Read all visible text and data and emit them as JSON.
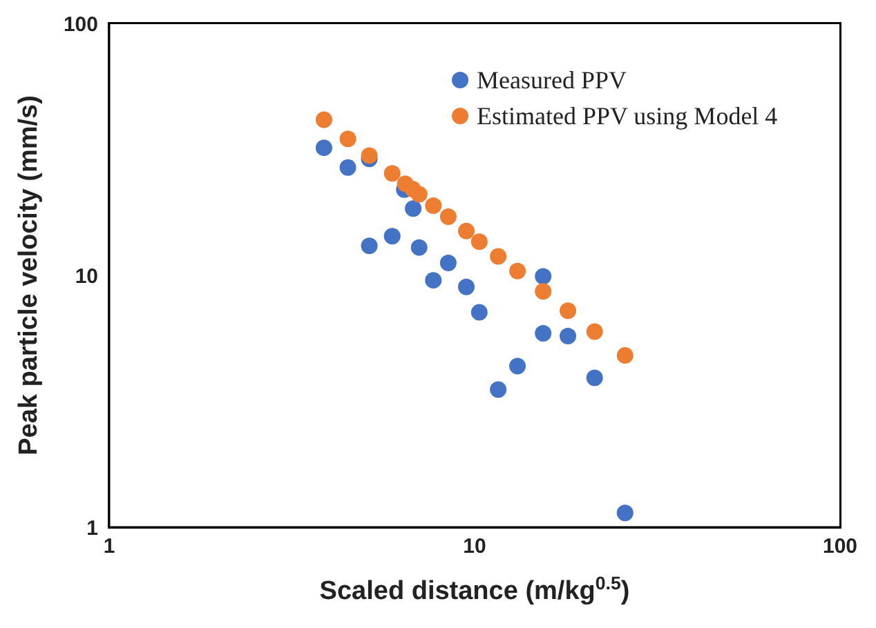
{
  "chart_data": {
    "type": "scatter",
    "xlabel": "Scaled distance (m/kg$^{0.5}$)",
    "ylabel": "Peak particle velocity (mm/s)",
    "log": "xy",
    "xlim": [
      1,
      100
    ],
    "xticks": [
      1,
      10,
      100
    ],
    "ylim": [
      1,
      100
    ],
    "yticks": [
      1,
      10,
      100
    ],
    "legend": "top right",
    "marker": "circle",
    "series": [
      {
        "name": "Measured PPV",
        "color": "#4472c4",
        "x": [
          3.87,
          4.5,
          5.15,
          5.15,
          5.95,
          6.42,
          6.79,
          7.05,
          7.71,
          8.47,
          9.49,
          10.3,
          11.6,
          13.1,
          15.4,
          15.4,
          18.0,
          21.3,
          25.8
        ],
        "values": [
          32.1,
          26.8,
          29.0,
          13.1,
          14.3,
          21.9,
          18.4,
          12.9,
          9.56,
          11.2,
          9.0,
          7.13,
          3.52,
          4.36,
          9.9,
          5.89,
          5.74,
          3.92,
          1.14
        ]
      },
      {
        "name": "Estimated PPV using Model 4",
        "color": "#ed7d31",
        "x": [
          3.87,
          4.5,
          5.15,
          5.95,
          6.46,
          6.77,
          7.05,
          7.71,
          8.47,
          9.49,
          10.3,
          11.6,
          13.1,
          15.4,
          18.0,
          21.3,
          25.8
        ],
        "values": [
          41.5,
          34.8,
          29.9,
          25.4,
          23.1,
          22.0,
          21.0,
          18.9,
          17.1,
          15.0,
          13.6,
          11.9,
          10.4,
          8.64,
          7.24,
          5.98,
          4.81
        ]
      }
    ]
  }
}
